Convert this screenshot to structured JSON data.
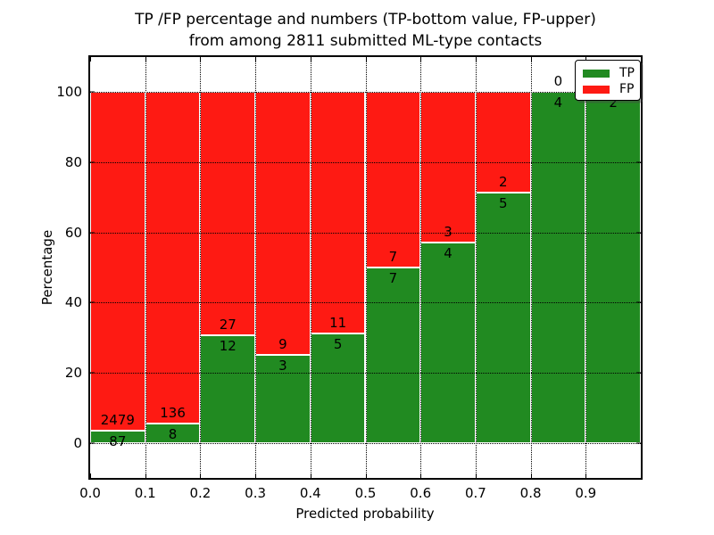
{
  "figure": {
    "title_line1": "TP /FP percentage and numbers (TP-bottom value, FP-upper)",
    "title_line2": "from among 2811 submitted ML-type contacts",
    "xlabel": "Predicted probability",
    "ylabel": "Percentage"
  },
  "chart_data": {
    "type": "bar",
    "variant": "stacked-percentage",
    "title": "TP /FP percentage and numbers (TP-bottom value, FP-upper) from among 2811 submitted ML-type contacts",
    "xlabel": "Predicted probability",
    "ylabel": "Percentage",
    "total_submitted": 2811,
    "x_tick_labels": [
      "0.0",
      "0.1",
      "0.2",
      "0.3",
      "0.4",
      "0.5",
      "0.6",
      "0.7",
      "0.8",
      "0.9"
    ],
    "y_ticks": [
      0,
      20,
      40,
      60,
      80,
      100
    ],
    "xlim": [
      0.0,
      1.0
    ],
    "ylim": [
      -10,
      110
    ],
    "bin_width": 0.1,
    "categories": [
      "0.0-0.1",
      "0.1-0.2",
      "0.2-0.3",
      "0.3-0.4",
      "0.4-0.5",
      "0.5-0.6",
      "0.6-0.7",
      "0.7-0.8",
      "0.8-0.9",
      "0.9-1.0"
    ],
    "series": [
      {
        "name": "TP",
        "color": "#218a21",
        "values": [
          87,
          8,
          12,
          3,
          5,
          7,
          4,
          5,
          4,
          2
        ]
      },
      {
        "name": "FP",
        "color": "#fe1a13",
        "values": [
          2479,
          136,
          27,
          9,
          11,
          7,
          3,
          2,
          0,
          0
        ]
      }
    ],
    "tp_percent": [
      3.39,
      5.56,
      30.77,
      25.0,
      31.25,
      50.0,
      57.14,
      71.43,
      100.0,
      100.0
    ],
    "legend": {
      "position": "upper right",
      "entries": [
        "TP",
        "FP"
      ]
    },
    "grid": "dotted both-axes drawn-over-bars"
  }
}
